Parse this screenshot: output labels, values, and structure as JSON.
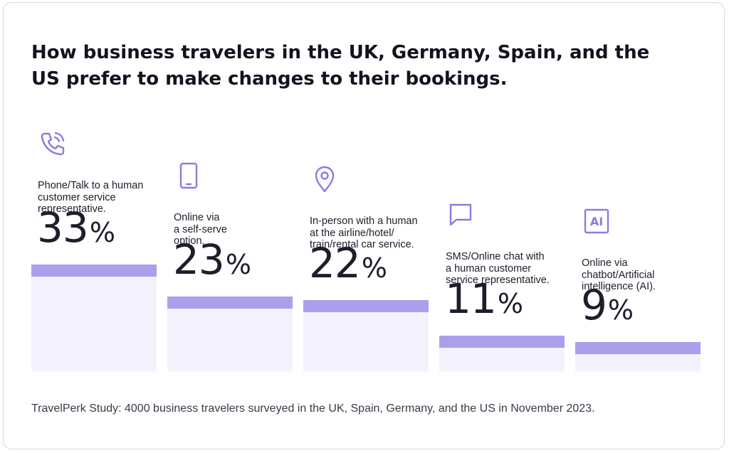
{
  "title": "How business travelers in the UK, Germany, Spain, and the US prefer to make changes to their bookings.",
  "footer": "TravelPerk Study: 4000 business travelers surveyed in the UK, Spain, Germany, and the US in November 2023.",
  "colors": {
    "bar_cap": "#ad9eeb",
    "bar_fill": "#f3f2fd",
    "icon": "#8f7ae0",
    "text": "#1d1d2b"
  },
  "chart_data": {
    "type": "bar",
    "title": "How business travelers in the UK, Germany, Spain, and the US prefer to make changes to their bookings.",
    "unit": "%",
    "categories": [
      "Phone/Talk to a human customer service representative.",
      "Online via a self-serve option.",
      "In-person with a human at the airline/hotel/ train/rental car service.",
      "SMS/Online chat with a human customer service representative.",
      "Online via chatbot/Artificial intelligence (AI)."
    ],
    "values": [
      33,
      23,
      22,
      11,
      9
    ],
    "items": [
      {
        "icon": "phone-icon",
        "label": [
          "Phone/Talk to a human",
          "customer service",
          "representative."
        ],
        "value": "33",
        "unit": "%"
      },
      {
        "icon": "mobile-icon",
        "label": [
          "Online via",
          "a self-serve",
          "option."
        ],
        "value": "23",
        "unit": "%"
      },
      {
        "icon": "location-pin-icon",
        "label": [
          "In-person with a human",
          "at the airline/hotel/",
          "train/rental car service."
        ],
        "value": "22",
        "unit": "%"
      },
      {
        "icon": "chat-bubble-icon",
        "label": [
          "SMS/Online chat with",
          "a human customer",
          "service representative."
        ],
        "value": "11",
        "unit": "%"
      },
      {
        "icon": "ai-icon",
        "label": [
          "Online via",
          "chatbot/Artificial",
          "intelligence (AI)."
        ],
        "value": "9",
        "unit": "%",
        "icon_text": "AI"
      }
    ]
  }
}
